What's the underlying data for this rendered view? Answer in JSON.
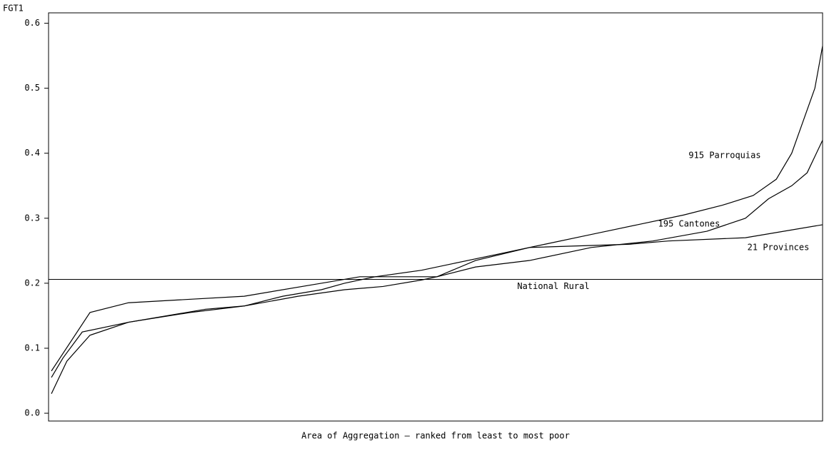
{
  "chart_data": {
    "type": "line",
    "y_label": "FGT1",
    "x_label": "Area of Aggregation – ranked from least to most poor",
    "xlim": [
      0,
      100
    ],
    "ylim": [
      -0.012,
      0.616
    ],
    "yticks": [
      {
        "value": 0,
        "label": "0.0"
      },
      0.1,
      0.2,
      0.3,
      0.4,
      0.5,
      0.6
    ],
    "series": [
      {
        "name": "915 Parroquias",
        "color": "#000000",
        "x": [
          0,
          2,
          5,
          10,
          18,
          25,
          30,
          35,
          38,
          42,
          48,
          52,
          58,
          64,
          70,
          76,
          82,
          87,
          91,
          94,
          96,
          97.5,
          99,
          100
        ],
        "values": [
          0.03,
          0.08,
          0.12,
          0.14,
          0.155,
          0.165,
          0.18,
          0.19,
          0.2,
          0.21,
          0.22,
          0.23,
          0.245,
          0.26,
          0.275,
          0.29,
          0.305,
          0.32,
          0.335,
          0.36,
          0.4,
          0.45,
          0.5,
          0.565
        ]
      },
      {
        "name": "195 Cantones",
        "color": "#000000",
        "x": [
          0,
          1.5,
          4,
          10,
          20,
          25,
          32,
          38,
          43,
          48,
          50,
          55,
          62,
          70,
          78,
          85,
          90,
          93,
          96,
          98,
          100
        ],
        "values": [
          0.055,
          0.085,
          0.125,
          0.14,
          0.16,
          0.165,
          0.18,
          0.19,
          0.195,
          0.205,
          0.21,
          0.225,
          0.235,
          0.255,
          0.265,
          0.28,
          0.3,
          0.33,
          0.35,
          0.37,
          0.42
        ]
      },
      {
        "name": "21 Provinces",
        "color": "#000000",
        "x": [
          0,
          5,
          10,
          25,
          35,
          40,
          50,
          55,
          62,
          75,
          80,
          90,
          100
        ],
        "values": [
          0.065,
          0.155,
          0.17,
          0.18,
          0.2,
          0.21,
          0.21,
          0.235,
          0.255,
          0.26,
          0.265,
          0.27,
          0.29
        ]
      }
    ],
    "reference_line": {
      "label": "National Rural",
      "value": 0.206
    }
  }
}
